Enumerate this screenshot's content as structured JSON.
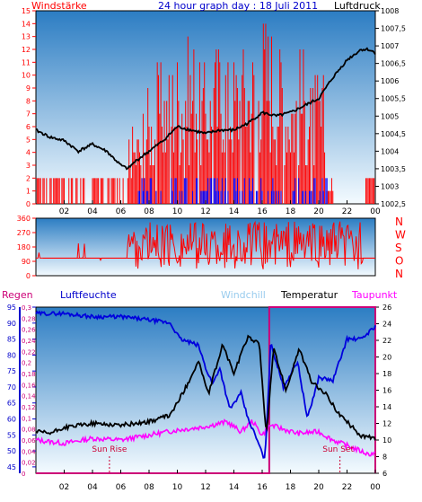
{
  "chart_data": [
    {
      "id": "wind-pressure",
      "type": "bar",
      "title": "24 hour graph day : 18 Juli 2011",
      "left_axis_label": "Windstärke",
      "right_axis_label": "Luftdruck",
      "x_tick_labels": [
        "02",
        "04",
        "06",
        "08",
        "10",
        "12",
        "14",
        "16",
        "18",
        "20",
        "22",
        "00"
      ],
      "left_ticks": [
        "0",
        "1",
        "2",
        "3",
        "4",
        "5",
        "6",
        "7",
        "8",
        "9",
        "10",
        "11",
        "12",
        "13",
        "14",
        "15"
      ],
      "right_ticks": [
        "1002,5",
        "1003",
        "1003,5",
        "1004",
        "1004,5",
        "1005",
        "1005,5",
        "1006",
        "1006,5",
        "1007",
        "1007,5",
        "1008"
      ],
      "ylim_left": [
        0,
        15
      ],
      "ylim_right": [
        1002.5,
        1008
      ],
      "wind_gust_peaks": [
        {
          "hour": 0.5,
          "value": 2
        },
        {
          "hour": 2.0,
          "value": 2
        },
        {
          "hour": 3.0,
          "value": 1
        },
        {
          "hour": 5.0,
          "value": 2
        },
        {
          "hour": 6.5,
          "value": 3
        },
        {
          "hour": 7.0,
          "value": 6
        },
        {
          "hour": 8.0,
          "value": 9
        },
        {
          "hour": 9.0,
          "value": 11
        },
        {
          "hour": 10.0,
          "value": 12
        },
        {
          "hour": 11.0,
          "value": 13
        },
        {
          "hour": 12.0,
          "value": 11
        },
        {
          "hour": 13.0,
          "value": 13
        },
        {
          "hour": 14.0,
          "value": 12
        },
        {
          "hour": 15.0,
          "value": 13
        },
        {
          "hour": 16.2,
          "value": 15
        },
        {
          "hour": 17.0,
          "value": 13
        },
        {
          "hour": 18.0,
          "value": 11
        },
        {
          "hour": 19.0,
          "value": 12
        },
        {
          "hour": 20.0,
          "value": 10
        },
        {
          "hour": 21.0,
          "value": 2
        },
        {
          "hour": 23.5,
          "value": 2
        }
      ],
      "pressure_series": [
        {
          "hour": 0,
          "value": 1004.6
        },
        {
          "hour": 1,
          "value": 1004.4
        },
        {
          "hour": 2,
          "value": 1004.3
        },
        {
          "hour": 3,
          "value": 1004.0
        },
        {
          "hour": 4,
          "value": 1004.2
        },
        {
          "hour": 5,
          "value": 1004.0
        },
        {
          "hour": 6,
          "value": 1003.6
        },
        {
          "hour": 6.5,
          "value": 1003.5
        },
        {
          "hour": 7,
          "value": 1003.7
        },
        {
          "hour": 8,
          "value": 1004.0
        },
        {
          "hour": 9,
          "value": 1004.3
        },
        {
          "hour": 10,
          "value": 1004.7
        },
        {
          "hour": 11,
          "value": 1004.6
        },
        {
          "hour": 12,
          "value": 1004.5
        },
        {
          "hour": 13,
          "value": 1004.6
        },
        {
          "hour": 14,
          "value": 1004.6
        },
        {
          "hour": 15,
          "value": 1004.8
        },
        {
          "hour": 16,
          "value": 1005.1
        },
        {
          "hour": 17,
          "value": 1005.0
        },
        {
          "hour": 18,
          "value": 1005.1
        },
        {
          "hour": 19,
          "value": 1005.3
        },
        {
          "hour": 20,
          "value": 1005.5
        },
        {
          "hour": 21,
          "value": 1006.1
        },
        {
          "hour": 22,
          "value": 1006.6
        },
        {
          "hour": 23,
          "value": 1006.9
        },
        {
          "hour": 23.5,
          "value": 1006.9
        },
        {
          "hour": 24,
          "value": 1006.8
        }
      ]
    },
    {
      "id": "wind-direction",
      "type": "line",
      "y_ticks": [
        "0",
        "90",
        "180",
        "270",
        "360"
      ],
      "ylim": [
        0,
        360
      ],
      "compass_labels": [
        "N",
        "W",
        "S",
        "O",
        "N"
      ],
      "direction_hours": [
        0.5,
        24
      ],
      "active_hours": [
        7.5,
        23.0
      ]
    },
    {
      "id": "humidity-temperature",
      "type": "line",
      "legend": [
        "Regen",
        "Luftfeuchte",
        "Windchill",
        "Temperatur",
        "Taupunkt"
      ],
      "humidity_ticks": [
        "45",
        "50",
        "55",
        "60",
        "65",
        "70",
        "75",
        "80",
        "85",
        "90",
        "95"
      ],
      "rain_ticks": [
        "0",
        "0,02",
        "0,04",
        "0,06",
        "0,08",
        "0,1",
        "0,12",
        "0,14",
        "0,16",
        "0,18",
        "0,2",
        "0,22",
        "0,24",
        "0,26",
        "0,28",
        "0,3"
      ],
      "temperature_ticks": [
        "6",
        "8",
        "10",
        "12",
        "14",
        "16",
        "18",
        "20",
        "22",
        "24",
        "26"
      ],
      "x_tick_labels": [
        "02",
        "04",
        "06",
        "08",
        "10",
        "12",
        "14",
        "16",
        "18",
        "20",
        "22",
        "00"
      ],
      "ylim_humidity": [
        43,
        95
      ],
      "ylim_temperature": [
        6,
        26
      ],
      "annotations": [
        "Sun Rise",
        "Sun Set"
      ],
      "sunrise_hour": 5.2,
      "sunset_hour": 21.5,
      "rain_hours": [
        16.5,
        24
      ],
      "rain_value": 0.3,
      "humidity_series": [
        {
          "hour": 0,
          "value": 93
        },
        {
          "hour": 2,
          "value": 93
        },
        {
          "hour": 4,
          "value": 92
        },
        {
          "hour": 6,
          "value": 92
        },
        {
          "hour": 8,
          "value": 91
        },
        {
          "hour": 9.5,
          "value": 90
        },
        {
          "hour": 10.2,
          "value": 85
        },
        {
          "hour": 11.5,
          "value": 83
        },
        {
          "hour": 12,
          "value": 76
        },
        {
          "hour": 12.5,
          "value": 71
        },
        {
          "hour": 13,
          "value": 76
        },
        {
          "hour": 13.7,
          "value": 63
        },
        {
          "hour": 14.5,
          "value": 68
        },
        {
          "hour": 15,
          "value": 60
        },
        {
          "hour": 15.5,
          "value": 55
        },
        {
          "hour": 16.2,
          "value": 47
        },
        {
          "hour": 16.6,
          "value": 84
        },
        {
          "hour": 17.5,
          "value": 70
        },
        {
          "hour": 18.5,
          "value": 78
        },
        {
          "hour": 19.2,
          "value": 60
        },
        {
          "hour": 20,
          "value": 73
        },
        {
          "hour": 21,
          "value": 72
        },
        {
          "hour": 22,
          "value": 85
        },
        {
          "hour": 23,
          "value": 85
        },
        {
          "hour": 24,
          "value": 89
        }
      ],
      "temperature_series": [
        {
          "hour": 0,
          "value": 11.0
        },
        {
          "hour": 1,
          "value": 10.8
        },
        {
          "hour": 2,
          "value": 11.5
        },
        {
          "hour": 4,
          "value": 12.0
        },
        {
          "hour": 6,
          "value": 11.8
        },
        {
          "hour": 8,
          "value": 12.2
        },
        {
          "hour": 9.5,
          "value": 13.0
        },
        {
          "hour": 10.5,
          "value": 16.0
        },
        {
          "hour": 11.5,
          "value": 19.5
        },
        {
          "hour": 12.2,
          "value": 15.5
        },
        {
          "hour": 13.2,
          "value": 21.5
        },
        {
          "hour": 14,
          "value": 18.0
        },
        {
          "hour": 15,
          "value": 22.5
        },
        {
          "hour": 15.8,
          "value": 21.5
        },
        {
          "hour": 16.3,
          "value": 10.5
        },
        {
          "hour": 16.8,
          "value": 21.0
        },
        {
          "hour": 17.7,
          "value": 16.0
        },
        {
          "hour": 18.6,
          "value": 21.0
        },
        {
          "hour": 19.5,
          "value": 17.0
        },
        {
          "hour": 20.5,
          "value": 15.5
        },
        {
          "hour": 21.5,
          "value": 13.0
        },
        {
          "hour": 23,
          "value": 10.5
        },
        {
          "hour": 24,
          "value": 10.2
        }
      ],
      "dewpoint_series": [
        {
          "hour": 0,
          "value": 10.0
        },
        {
          "hour": 2,
          "value": 9.6
        },
        {
          "hour": 4,
          "value": 10.2
        },
        {
          "hour": 6,
          "value": 10.0
        },
        {
          "hour": 8,
          "value": 10.6
        },
        {
          "hour": 10,
          "value": 11.2
        },
        {
          "hour": 11.5,
          "value": 11.5
        },
        {
          "hour": 12.5,
          "value": 11.8
        },
        {
          "hour": 13.5,
          "value": 12.2
        },
        {
          "hour": 14.5,
          "value": 11.0
        },
        {
          "hour": 15.3,
          "value": 12.3
        },
        {
          "hour": 16,
          "value": 10.6
        },
        {
          "hour": 16.6,
          "value": 11.8
        },
        {
          "hour": 17.5,
          "value": 11.3
        },
        {
          "hour": 18.5,
          "value": 10.8
        },
        {
          "hour": 20,
          "value": 11.0
        },
        {
          "hour": 21,
          "value": 10.0
        },
        {
          "hour": 22.5,
          "value": 9.0
        },
        {
          "hour": 23.5,
          "value": 8.3
        },
        {
          "hour": 24,
          "value": 8.4
        }
      ]
    }
  ],
  "colors": {
    "panel_top": "#2c7dc3",
    "panel_bottom": "#f4fbff",
    "wind_gust": "#ff0000",
    "wind_mean": "#0000ff",
    "pressure": "#000000",
    "direction": "#ff0000",
    "humidity": "#0000dd",
    "temperature": "#000000",
    "dewpoint": "#ff00ff",
    "rain": "#cc0077",
    "regen_label": "#cc0077",
    "luftfeuchte_label": "#0000cc",
    "windchill_label": "#99ccee",
    "taupunkt_label": "#ff00ff",
    "title": "#0000cc"
  }
}
